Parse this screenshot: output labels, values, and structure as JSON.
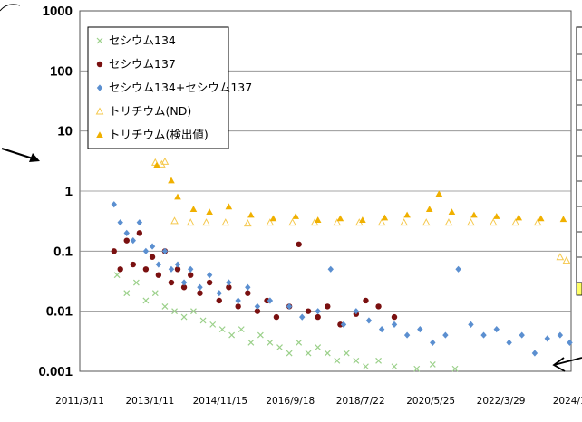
{
  "chart_data": {
    "type": "scatter",
    "title": "",
    "xlabel": "",
    "ylabel": "",
    "yscale": "log",
    "ylim": [
      0.001,
      1000
    ],
    "xlim": [
      "2011-03-11",
      "2024-01-14"
    ],
    "y_ticks": [
      "1000",
      "100",
      "10",
      "1",
      "0.1",
      "0.01",
      "0.001"
    ],
    "x_ticks": [
      "2011/3/11",
      "2013/1/11",
      "2014/11/15",
      "2016/9/18",
      "2018/7/22",
      "2020/5/25",
      "2022/3/29",
      "2024/1/"
    ],
    "grid": "horizontal",
    "legend_position": "top-left",
    "colors": {
      "cs134": "#9bd08a",
      "cs137": "#7a1010",
      "cs_total": "#5b8fd0",
      "tritium_nd": "#f5c84c",
      "tritium_detected": "#f0b000"
    },
    "series": [
      {
        "name": "セシウム134",
        "key": "cs134",
        "marker": "x",
        "points": [
          [
            "2012-03-01",
            0.04
          ],
          [
            "2012-06-01",
            0.02
          ],
          [
            "2012-09-01",
            0.03
          ],
          [
            "2012-12-01",
            0.015
          ],
          [
            "2013-03-01",
            0.02
          ],
          [
            "2013-06-01",
            0.012
          ],
          [
            "2013-09-01",
            0.01
          ],
          [
            "2013-12-01",
            0.008
          ],
          [
            "2014-03-01",
            0.01
          ],
          [
            "2014-06-01",
            0.007
          ],
          [
            "2014-09-01",
            0.006
          ],
          [
            "2014-12-01",
            0.005
          ],
          [
            "2015-03-01",
            0.004
          ],
          [
            "2015-06-01",
            0.005
          ],
          [
            "2015-09-01",
            0.003
          ],
          [
            "2015-12-01",
            0.004
          ],
          [
            "2016-03-01",
            0.003
          ],
          [
            "2016-06-01",
            0.0025
          ],
          [
            "2016-09-01",
            0.002
          ],
          [
            "2016-12-01",
            0.003
          ],
          [
            "2017-03-01",
            0.002
          ],
          [
            "2017-06-01",
            0.0025
          ],
          [
            "2017-09-01",
            0.002
          ],
          [
            "2017-12-01",
            0.0015
          ],
          [
            "2018-03-01",
            0.002
          ],
          [
            "2018-06-01",
            0.0015
          ],
          [
            "2018-09-01",
            0.0012
          ],
          [
            "2019-01-01",
            0.0015
          ],
          [
            "2019-06-01",
            0.0012
          ],
          [
            "2020-01-01",
            0.0011
          ],
          [
            "2020-06-01",
            0.0013
          ],
          [
            "2021-01-01",
            0.0011
          ]
        ]
      },
      {
        "name": "セシウム137",
        "key": "cs137",
        "marker": "circle",
        "points": [
          [
            "2012-02-01",
            0.1
          ],
          [
            "2012-04-01",
            0.05
          ],
          [
            "2012-06-01",
            0.15
          ],
          [
            "2012-08-01",
            0.06
          ],
          [
            "2012-10-01",
            0.2
          ],
          [
            "2012-12-01",
            0.05
          ],
          [
            "2013-02-01",
            0.08
          ],
          [
            "2013-04-01",
            0.04
          ],
          [
            "2013-06-01",
            0.1
          ],
          [
            "2013-08-01",
            0.03
          ],
          [
            "2013-10-01",
            0.05
          ],
          [
            "2013-12-01",
            0.025
          ],
          [
            "2014-02-01",
            0.04
          ],
          [
            "2014-05-01",
            0.02
          ],
          [
            "2014-08-01",
            0.03
          ],
          [
            "2014-11-01",
            0.015
          ],
          [
            "2015-02-01",
            0.025
          ],
          [
            "2015-05-01",
            0.012
          ],
          [
            "2015-08-01",
            0.02
          ],
          [
            "2015-11-01",
            0.01
          ],
          [
            "2016-02-01",
            0.015
          ],
          [
            "2016-05-01",
            0.008
          ],
          [
            "2016-09-01",
            0.012
          ],
          [
            "2016-12-01",
            0.13
          ],
          [
            "2017-03-01",
            0.01
          ],
          [
            "2017-06-01",
            0.008
          ],
          [
            "2017-09-01",
            0.012
          ],
          [
            "2018-01-01",
            0.006
          ],
          [
            "2018-06-01",
            0.009
          ],
          [
            "2018-09-01",
            0.015
          ],
          [
            "2019-01-01",
            0.012
          ],
          [
            "2019-06-01",
            0.008
          ]
        ]
      },
      {
        "name": "セシウム134+セシウム137",
        "key": "cs_total",
        "marker": "diamond",
        "points": [
          [
            "2012-02-01",
            0.6
          ],
          [
            "2012-04-01",
            0.3
          ],
          [
            "2012-06-01",
            0.2
          ],
          [
            "2012-08-01",
            0.15
          ],
          [
            "2012-10-01",
            0.3
          ],
          [
            "2012-12-01",
            0.1
          ],
          [
            "2013-02-01",
            0.12
          ],
          [
            "2013-04-01",
            0.06
          ],
          [
            "2013-06-01",
            0.1
          ],
          [
            "2013-08-01",
            0.05
          ],
          [
            "2013-10-01",
            0.06
          ],
          [
            "2013-12-01",
            0.03
          ],
          [
            "2014-02-01",
            0.05
          ],
          [
            "2014-05-01",
            0.025
          ],
          [
            "2014-08-01",
            0.04
          ],
          [
            "2014-11-01",
            0.02
          ],
          [
            "2015-02-01",
            0.03
          ],
          [
            "2015-05-01",
            0.015
          ],
          [
            "2015-08-01",
            0.025
          ],
          [
            "2015-11-01",
            0.012
          ],
          [
            "2016-03-01",
            0.015
          ],
          [
            "2016-09-01",
            0.012
          ],
          [
            "2017-01-01",
            0.008
          ],
          [
            "2017-06-01",
            0.01
          ],
          [
            "2017-10-01",
            0.05
          ],
          [
            "2018-02-01",
            0.006
          ],
          [
            "2018-06-01",
            0.01
          ],
          [
            "2018-10-01",
            0.007
          ],
          [
            "2019-02-01",
            0.005
          ],
          [
            "2019-06-01",
            0.006
          ],
          [
            "2019-10-01",
            0.004
          ],
          [
            "2020-02-01",
            0.005
          ],
          [
            "2020-06-01",
            0.003
          ],
          [
            "2020-10-01",
            0.004
          ],
          [
            "2021-02-01",
            0.05
          ],
          [
            "2021-06-01",
            0.006
          ],
          [
            "2021-10-01",
            0.004
          ],
          [
            "2022-02-01",
            0.005
          ],
          [
            "2022-06-01",
            0.003
          ],
          [
            "2022-10-01",
            0.004
          ],
          [
            "2023-02-01",
            0.002
          ],
          [
            "2023-06-01",
            0.0035
          ],
          [
            "2023-10-01",
            0.004
          ],
          [
            "2024-01-01",
            0.003
          ]
        ]
      },
      {
        "name": "トリチウム(ND)",
        "key": "tritium_nd",
        "marker": "triangle-open",
        "points": [
          [
            "2013-03-01",
            3.0
          ],
          [
            "2013-05-01",
            2.8
          ],
          [
            "2013-06-01",
            3.1
          ],
          [
            "2013-09-01",
            0.32
          ],
          [
            "2014-02-01",
            0.3
          ],
          [
            "2014-07-01",
            0.3
          ],
          [
            "2015-01-01",
            0.3
          ],
          [
            "2015-08-01",
            0.29
          ],
          [
            "2016-03-01",
            0.3
          ],
          [
            "2016-10-01",
            0.3
          ],
          [
            "2017-05-01",
            0.3
          ],
          [
            "2017-12-01",
            0.3
          ],
          [
            "2018-07-01",
            0.3
          ],
          [
            "2019-02-01",
            0.3
          ],
          [
            "2019-09-01",
            0.3
          ],
          [
            "2020-04-01",
            0.3
          ],
          [
            "2020-11-01",
            0.3
          ],
          [
            "2021-06-01",
            0.3
          ],
          [
            "2022-01-01",
            0.3
          ],
          [
            "2022-08-01",
            0.3
          ],
          [
            "2023-03-01",
            0.3
          ],
          [
            "2023-10-01",
            0.08
          ],
          [
            "2023-12-01",
            0.07
          ]
        ]
      },
      {
        "name": "トリチウム(検出値)",
        "key": "tritium_detected",
        "marker": "triangle",
        "points": [
          [
            "2013-03-15",
            2.7
          ],
          [
            "2013-08-01",
            1.5
          ],
          [
            "2013-10-01",
            0.8
          ],
          [
            "2014-03-01",
            0.5
          ],
          [
            "2014-08-01",
            0.45
          ],
          [
            "2015-02-01",
            0.55
          ],
          [
            "2015-09-01",
            0.4
          ],
          [
            "2016-04-01",
            0.35
          ],
          [
            "2016-11-01",
            0.38
          ],
          [
            "2017-06-01",
            0.33
          ],
          [
            "2018-01-01",
            0.35
          ],
          [
            "2018-08-01",
            0.33
          ],
          [
            "2019-03-01",
            0.36
          ],
          [
            "2019-10-01",
            0.4
          ],
          [
            "2020-05-01",
            0.5
          ],
          [
            "2020-08-01",
            0.9
          ],
          [
            "2020-12-01",
            0.45
          ],
          [
            "2021-07-01",
            0.4
          ],
          [
            "2022-02-01",
            0.38
          ],
          [
            "2022-09-01",
            0.36
          ],
          [
            "2023-04-01",
            0.35
          ],
          [
            "2023-11-01",
            0.34
          ]
        ]
      }
    ]
  }
}
